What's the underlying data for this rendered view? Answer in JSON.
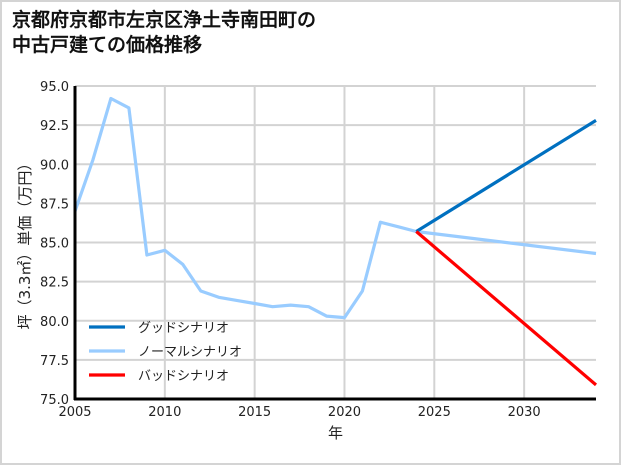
{
  "title": {
    "line1": "京都府京都市左京区浄土寺南田町の",
    "line2": "中古戸建ての価格推移"
  },
  "chart_data": {
    "type": "line",
    "title": "京都府京都市左京区浄土寺南田町の中古戸建ての価格推移",
    "xlabel": "年",
    "ylabel": "坪（3.3㎡）単価（万円）",
    "xlim": [
      2005,
      2034
    ],
    "ylim": [
      75.0,
      95.0
    ],
    "xticks": [
      2005,
      2010,
      2015,
      2020,
      2025,
      2030
    ],
    "xtick_labels": [
      "2005",
      "2010",
      "2015",
      "2020",
      "2025",
      "2030"
    ],
    "yticks": [
      75.0,
      77.5,
      80.0,
      82.5,
      85.0,
      87.5,
      90.0,
      92.5,
      95.0
    ],
    "ytick_labels": [
      "75.0",
      "77.5",
      "80.0",
      "82.5",
      "85.0",
      "87.5",
      "90.0",
      "92.5",
      "95.0"
    ],
    "grid": true,
    "legend_position": "lower left",
    "series": [
      {
        "name": "グッドシナリオ",
        "color": "#0070c0",
        "x": [
          2024,
          2034
        ],
        "values": [
          85.7,
          92.8
        ]
      },
      {
        "name": "ノーマルシナリオ",
        "color": "#99ccff",
        "x": [
          2005,
          2006,
          2007,
          2008,
          2009,
          2010,
          2011,
          2012,
          2013,
          2014,
          2015,
          2016,
          2017,
          2018,
          2019,
          2020,
          2021,
          2022,
          2023,
          2024,
          2034
        ],
        "values": [
          87.0,
          90.3,
          94.2,
          93.6,
          84.2,
          84.5,
          83.6,
          81.9,
          81.5,
          81.3,
          81.1,
          80.9,
          81.0,
          80.9,
          80.3,
          80.2,
          81.9,
          86.3,
          86.0,
          85.7,
          84.3
        ]
      },
      {
        "name": "バッドシナリオ",
        "color": "#ff0000",
        "x": [
          2024,
          2034
        ],
        "values": [
          85.7,
          75.9
        ]
      }
    ]
  }
}
